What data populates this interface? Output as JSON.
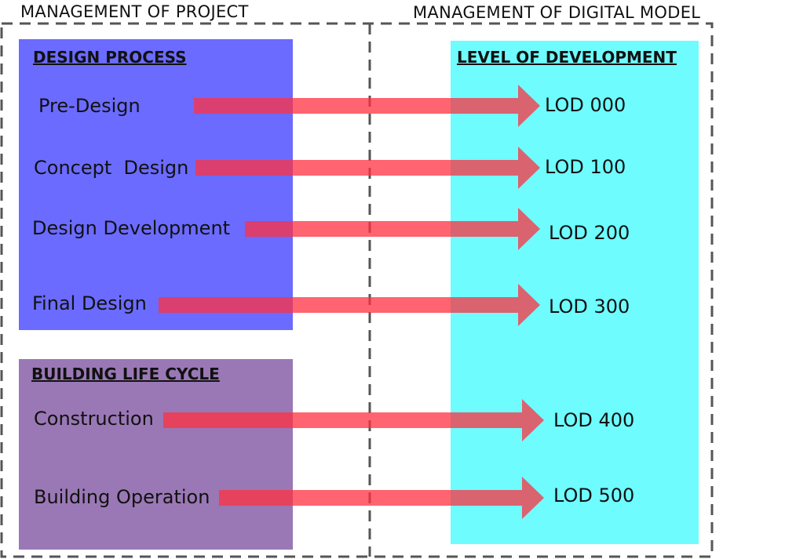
{
  "headers": {
    "project": "MANAGEMENT OF PROJECT",
    "digital_model": "MANAGEMENT OF DIGITAL MODEL"
  },
  "design_process": {
    "title": "DESIGN PROCESS",
    "items": [
      "Pre-Design",
      "Concept  Design",
      "Design Development",
      "Final Design"
    ]
  },
  "building_life_cycle": {
    "title": "BUILDING LIFE CYCLE",
    "items": [
      "Construction",
      "Building Operation"
    ]
  },
  "level_of_development": {
    "title": "LEVEL OF DEVELOPMENT",
    "items": [
      "LOD 000",
      "LOD 100",
      "LOD 200",
      "LOD 300",
      "LOD 400",
      "LOD 500"
    ]
  },
  "colors": {
    "design_process_bg": "#6b6bff",
    "building_life_cycle_bg": "#9a78b5",
    "lod_bg": "#6efcff",
    "arrow": "#ff4a56",
    "dash": "#555555"
  }
}
